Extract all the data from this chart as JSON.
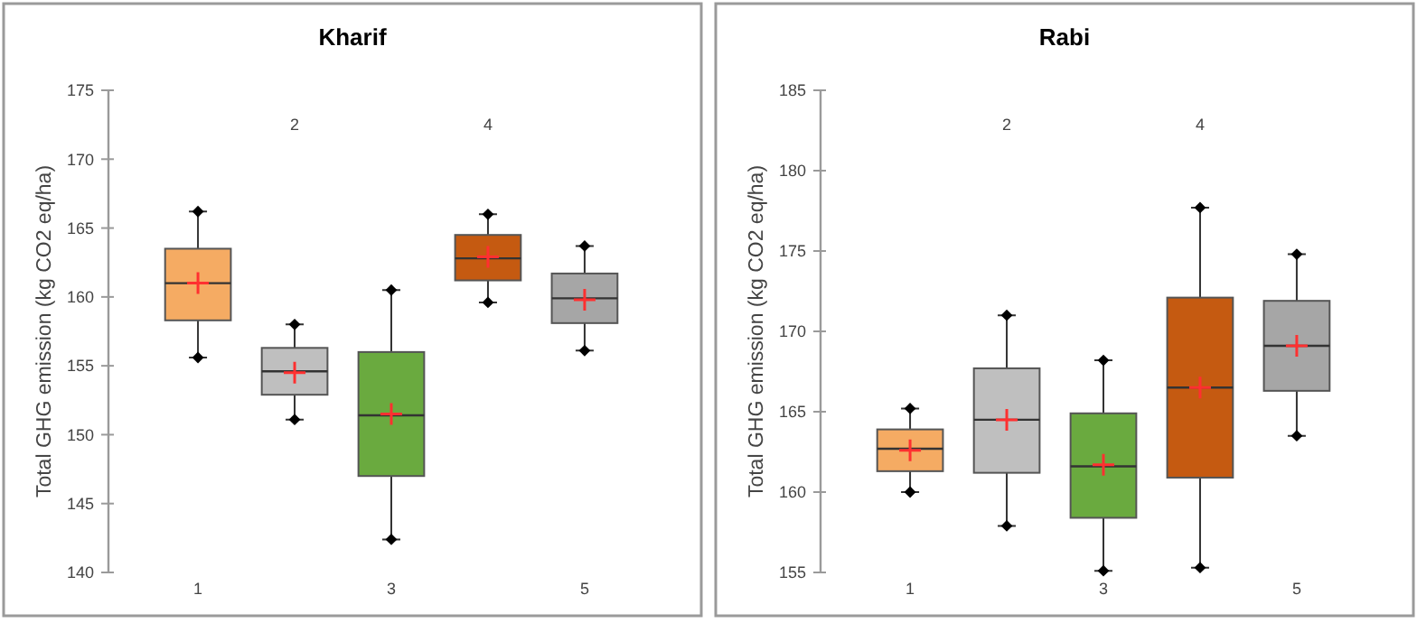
{
  "chart_data": [
    {
      "type": "box",
      "title": "Kharif",
      "ylabel": "Total GHG emission (kg CO2 eq/ha)",
      "categories": [
        "1",
        "2",
        "3",
        "4",
        "5"
      ],
      "colors": [
        "#f5ab63",
        "#bfbfbf",
        "#6aaa3f",
        "#c55a11",
        "#a6a6a6"
      ],
      "ylim": [
        140,
        175
      ],
      "yticks": [
        140,
        145,
        150,
        155,
        160,
        165,
        170,
        175
      ],
      "boxes": [
        {
          "low": 155.6,
          "q1": 158.3,
          "median": 161.0,
          "q3": 163.5,
          "high": 166.2,
          "mean": 161.0
        },
        {
          "low": 151.1,
          "q1": 152.9,
          "median": 154.6,
          "q3": 156.3,
          "high": 158.0,
          "mean": 154.5
        },
        {
          "low": 142.4,
          "q1": 147.0,
          "median": 151.4,
          "q3": 156.0,
          "high": 160.5,
          "mean": 151.5
        },
        {
          "low": 159.6,
          "q1": 161.2,
          "median": 162.8,
          "q3": 164.5,
          "high": 166.0,
          "mean": 162.9
        },
        {
          "low": 156.1,
          "q1": 158.1,
          "median": 159.9,
          "q3": 161.7,
          "high": 163.7,
          "mean": 159.8
        }
      ],
      "series": [
        {
          "type": "scatter",
          "color": "#000000",
          "marker": "diamond",
          "x": [
            "1",
            "1",
            "2",
            "2",
            "3",
            "3",
            "4",
            "4",
            "5",
            "5"
          ],
          "values": [
            166.2,
            155.6,
            158.0,
            151.1,
            160.5,
            142.4,
            166.0,
            159.6,
            163.7,
            156.1
          ]
        }
      ]
    },
    {
      "type": "box",
      "title": "Rabi",
      "ylabel": "Total GHG emission (kg CO2 eq/ha)",
      "categories": [
        "1",
        "2",
        "3",
        "4",
        "5"
      ],
      "colors": [
        "#f5ab63",
        "#bfbfbf",
        "#6aaa3f",
        "#c55a11",
        "#a6a6a6"
      ],
      "ylim": [
        155,
        185
      ],
      "yticks": [
        155,
        160,
        165,
        170,
        175,
        180,
        185
      ],
      "boxes": [
        {
          "low": 160.0,
          "q1": 161.3,
          "median": 162.7,
          "q3": 163.9,
          "high": 165.2,
          "mean": 162.6
        },
        {
          "low": 157.9,
          "q1": 161.2,
          "median": 164.5,
          "q3": 167.7,
          "high": 171.0,
          "mean": 164.5
        },
        {
          "low": 155.1,
          "q1": 158.4,
          "median": 161.6,
          "q3": 164.9,
          "high": 168.2,
          "mean": 161.7
        },
        {
          "low": 155.3,
          "q1": 160.9,
          "median": 166.5,
          "q3": 172.1,
          "high": 177.7,
          "mean": 166.5
        },
        {
          "low": 163.5,
          "q1": 166.3,
          "median": 169.1,
          "q3": 171.9,
          "high": 174.8,
          "mean": 169.1
        }
      ],
      "series": [
        {
          "type": "scatter",
          "color": "#000000",
          "marker": "diamond",
          "x": [
            "1",
            "1",
            "2",
            "2",
            "3",
            "3",
            "4",
            "4",
            "5",
            "5"
          ],
          "values": [
            165.2,
            160.0,
            171.0,
            157.9,
            168.2,
            155.1,
            177.7,
            155.3,
            174.8,
            163.5
          ]
        }
      ]
    }
  ]
}
